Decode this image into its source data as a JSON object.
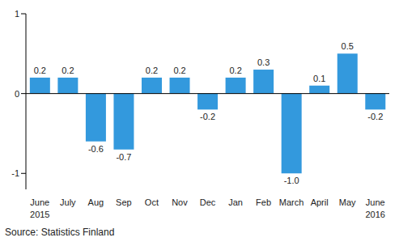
{
  "chart_data": {
    "type": "bar",
    "categories": [
      "June 2015",
      "July",
      "Aug",
      "Sep",
      "Oct",
      "Nov",
      "Dec",
      "Jan",
      "Feb",
      "March",
      "April",
      "May",
      "June 2016"
    ],
    "values": [
      0.2,
      0.2,
      -0.6,
      -0.7,
      0.2,
      0.2,
      -0.2,
      0.2,
      0.3,
      -1.0,
      0.1,
      0.5,
      -0.2
    ],
    "value_labels": [
      "0.2",
      "0.2",
      "-0.6",
      "-0.7",
      "0.2",
      "0.2",
      "-0.2",
      "0.2",
      "0.3",
      "-1.0",
      "0.1",
      "0.5",
      "-0.2"
    ],
    "color": "#3399dd",
    "ylim": [
      -1.2,
      1
    ],
    "yticks": [
      -1,
      0,
      1
    ],
    "grid": false,
    "data_labels": true,
    "source": "Source: Statistics Finland"
  }
}
